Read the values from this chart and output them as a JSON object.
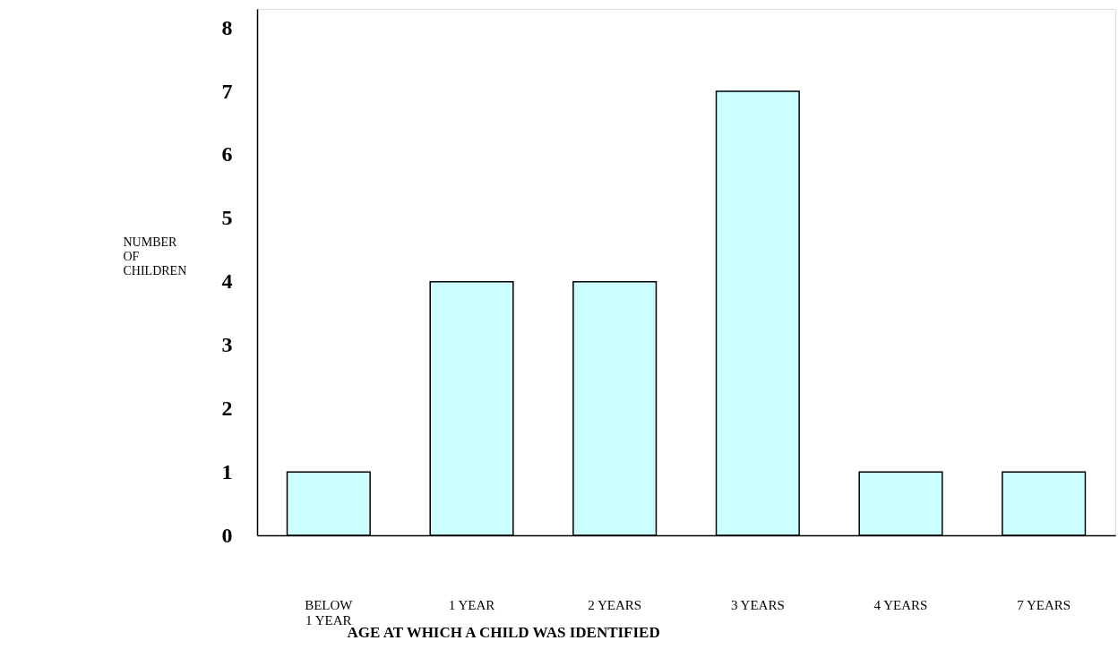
{
  "chart_data": {
    "type": "bar",
    "xlabel": "AGE AT WHICH A CHILD WAS IDENTIFIED",
    "ylabel": "NUMBER\nOF\nCHILDREN",
    "categories": [
      "BELOW\n1 YEAR",
      "1 YEAR",
      "2 YEARS",
      "3 YEARS",
      "4 YEARS",
      "7 YEARS"
    ],
    "values": [
      1,
      4,
      4,
      7,
      1,
      1
    ],
    "color": "#ccffff",
    "ylim": [
      0,
      8.3
    ],
    "yticks": [
      0,
      1,
      2,
      3,
      4,
      5,
      6,
      7,
      8
    ],
    "grid": false
  }
}
